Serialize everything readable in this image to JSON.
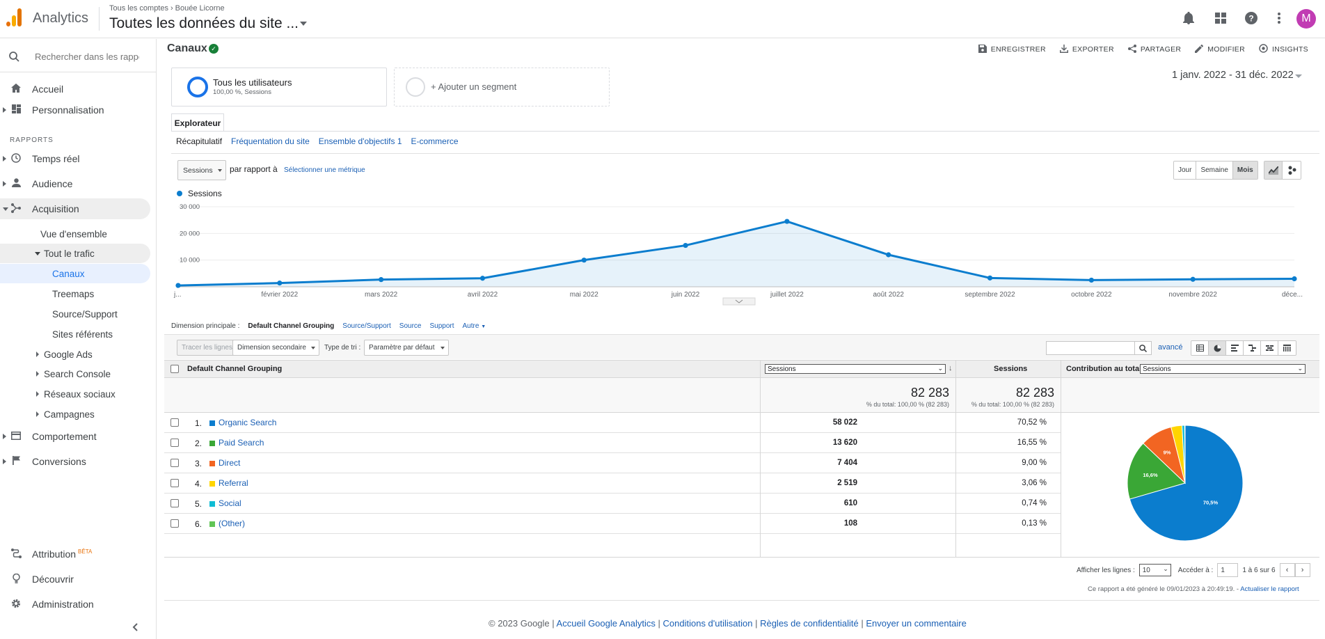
{
  "header": {
    "app_name": "Analytics",
    "breadcrumb": [
      "Tous les comptes",
      "Bouée Licorne"
    ],
    "property": "Toutes les données du site ...",
    "avatar_letter": "M"
  },
  "sidebar": {
    "search_placeholder": "Rechercher dans les rapport",
    "home": "Accueil",
    "personalisation": "Personnalisation",
    "reports_label": "RAPPORTS",
    "realtime": "Temps réel",
    "audience": "Audience",
    "acquisition": "Acquisition",
    "overview": "Vue d'ensemble",
    "all_traffic": "Tout le trafic",
    "channels": "Canaux",
    "treemaps": "Treemaps",
    "source_medium": "Source/Support",
    "referrals": "Sites référents",
    "google_ads": "Google Ads",
    "search_console": "Search Console",
    "social": "Réseaux sociaux",
    "campaigns": "Campagnes",
    "behaviour": "Comportement",
    "conversions": "Conversions",
    "attribution": "Attribution",
    "beta": "BÊTA",
    "discover": "Découvrir",
    "admin": "Administration"
  },
  "main": {
    "title": "Canaux",
    "actions": [
      "ENREGISTRER",
      "EXPORTER",
      "PARTAGER",
      "MODIFIER",
      "INSIGHTS"
    ],
    "segment_title": "Tous les utilisateurs",
    "segment_sub": "100,00 %, Sessions",
    "add_segment": "+ Ajouter un segment",
    "date_range": "1 janv. 2022 - 31 déc. 2022",
    "explorer_tab": "Explorateur",
    "subtabs": [
      "Récapitulatif",
      "Fréquentation du site",
      "Ensemble d'objectifs 1",
      "E-commerce"
    ],
    "metric_select": "Sessions",
    "vs_text": "par rapport à",
    "select_metric": "Sélectionner une métrique",
    "periods": [
      "Jour",
      "Semaine",
      "Mois"
    ],
    "legend": "Sessions"
  },
  "chart_data": {
    "type": "area",
    "series": [
      {
        "name": "Sessions",
        "values": [
          500,
          1400,
          2700,
          3200,
          10000,
          15500,
          24500,
          12000,
          3300,
          2500,
          2800,
          3000
        ]
      }
    ],
    "x": [
      "janv. 2022",
      "févr. 2022",
      "mars 2022",
      "avr. 2022",
      "mai 2022",
      "juin 2022",
      "juil. 2022",
      "août 2022",
      "sept. 2022",
      "oct. 2022",
      "nov. 2022",
      "déc. 2022"
    ],
    "x_tick_labels": [
      "j...",
      "février 2022",
      "mars 2022",
      "avril 2022",
      "mai 2022",
      "juin 2022",
      "juillet 2022",
      "août 2022",
      "septembre 2022",
      "octobre 2022",
      "novembre 2022",
      "déce..."
    ],
    "y_ticks": [
      "30 000",
      "20 000",
      "10 000"
    ],
    "ylim": [
      0,
      30000
    ],
    "color": "#0b7dce"
  },
  "dimension": {
    "label": "Dimension principale :",
    "options": [
      "Default Channel Grouping",
      "Source/Support",
      "Source",
      "Support",
      "Autre"
    ]
  },
  "toolbar": {
    "plot_rows": "Tracer les lignes",
    "secondary": "Dimension secondaire",
    "sort_label": "Type de tri :",
    "sort_value": "Paramètre par défaut",
    "advanced": "avancé"
  },
  "table": {
    "col_dim": "Default Channel Grouping",
    "col_metric_select": "Sessions",
    "col_sessions": "Sessions",
    "col_contribution": "Contribution au total :",
    "contribution_select": "Sessions",
    "total_value": "82 283",
    "total_note": "% du total: 100,00 % (82 283)",
    "rows": [
      {
        "idx": "1.",
        "label": "Organic Search",
        "value": "58 022",
        "pct": "70,52 %",
        "color": "#0b7dce"
      },
      {
        "idx": "2.",
        "label": "Paid Search",
        "value": "13 620",
        "pct": "16,55 %",
        "color": "#3aa736"
      },
      {
        "idx": "3.",
        "label": "Direct",
        "value": "7 404",
        "pct": "9,00 %",
        "color": "#f26522"
      },
      {
        "idx": "4.",
        "label": "Referral",
        "value": "2 519",
        "pct": "3,06 %",
        "color": "#ffd500"
      },
      {
        "idx": "5.",
        "label": "Social",
        "value": "610",
        "pct": "0,74 %",
        "color": "#0fbcd4"
      },
      {
        "idx": "6.",
        "label": "(Other)",
        "value": "108",
        "pct": "0,13 %",
        "color": "#61c556"
      }
    ],
    "pie_labels": [
      "70,5%",
      "16,6%",
      "9%"
    ]
  },
  "pager": {
    "show_rows": "Afficher les lignes :",
    "rows_value": "10",
    "goto": "Accéder à :",
    "goto_value": "1",
    "range": "1 à 6 sur 6"
  },
  "generated": "Ce rapport a été généré le 09/01/2023 à 20:49:19. -",
  "refresh": "Actualiser le rapport",
  "footer": {
    "copyright": "© 2023 Google |",
    "links": [
      "Accueil Google Analytics",
      "Conditions d'utilisation",
      "Règles de confidentialité",
      "Envoyer un commentaire"
    ]
  }
}
